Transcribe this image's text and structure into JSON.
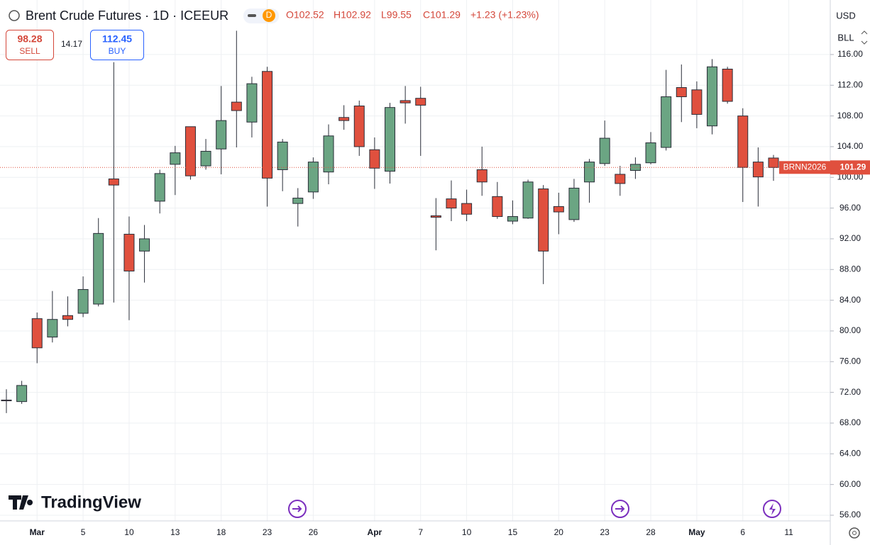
{
  "header": {
    "title": "Brent Crude Futures · 1D · ICEEUR",
    "badge": "D",
    "open": "O102.52",
    "high": "H102.92",
    "low": "L99.55",
    "close": "C101.29",
    "change": "+1.23 (+1.23%)",
    "sell_price": "98.28",
    "sell": "SELL",
    "spread": "14.17",
    "buy_price": "112.45",
    "buy": "BUY",
    "currency": "USD",
    "unit": "BLL",
    "logo": "TradingView",
    "symbol_tag": "BRNN2026"
  },
  "chart_data": {
    "type": "candlestick",
    "categories": [
      null,
      null,
      "Mar",
      null,
      null,
      "5",
      null,
      null,
      "10",
      null,
      null,
      "13",
      null,
      null,
      "18",
      null,
      null,
      "23",
      null,
      null,
      "26",
      null,
      null,
      null,
      "Apr",
      null,
      null,
      "7",
      null,
      null,
      "10",
      null,
      null,
      "15",
      null,
      null,
      "20",
      null,
      null,
      "23",
      null,
      null,
      "28",
      null,
      null,
      "May",
      null,
      null,
      "6",
      null,
      null,
      "11"
    ],
    "open": [
      71.0,
      70.8,
      81.6,
      79.2,
      82.0,
      82.3,
      83.5,
      99.8,
      92.6,
      90.4,
      96.9,
      101.7,
      106.6,
      101.5,
      103.7,
      109.8,
      107.2,
      113.8,
      101.0,
      96.6,
      98.1,
      100.7,
      107.8,
      109.3,
      103.6,
      100.8,
      110.0,
      110.3,
      95.0,
      97.2,
      96.6,
      101.0,
      97.5,
      94.3,
      94.7,
      98.5,
      96.2,
      94.5,
      99.4,
      101.8,
      100.4,
      100.9,
      101.9,
      103.9,
      111.7,
      111.4,
      106.7,
      114.1,
      108.0,
      102.0,
      102.52,
      null
    ],
    "high": [
      72.4,
      73.5,
      82.4,
      85.2,
      84.5,
      87.1,
      94.7,
      115.0,
      94.9,
      93.8,
      101.0,
      104.1,
      106.6,
      105.0,
      111.9,
      119.1,
      113.1,
      114.4,
      105.0,
      98.6,
      102.6,
      106.9,
      109.4,
      110.0,
      105.2,
      109.7,
      111.9,
      111.8,
      97.3,
      99.6,
      98.4,
      104.0,
      99.4,
      97.0,
      99.7,
      99.0,
      98.0,
      99.8,
      102.4,
      107.4,
      101.5,
      102.6,
      105.9,
      114.0,
      114.7,
      112.5,
      115.4,
      114.4,
      109.0,
      103.9,
      102.92,
      null
    ],
    "low": [
      69.3,
      70.5,
      75.8,
      78.5,
      80.6,
      81.8,
      83.2,
      83.7,
      81.4,
      86.3,
      95.3,
      97.7,
      99.7,
      101.0,
      100.4,
      103.9,
      105.2,
      96.2,
      98.2,
      93.6,
      97.2,
      99.1,
      106.2,
      102.8,
      98.5,
      99.2,
      107.0,
      102.8,
      90.5,
      94.3,
      94.3,
      97.6,
      94.6,
      93.9,
      94.6,
      86.1,
      92.6,
      94.2,
      96.7,
      101.5,
      97.6,
      99.8,
      101.7,
      103.5,
      107.2,
      106.4,
      105.6,
      109.6,
      96.8,
      96.2,
      99.55,
      null
    ],
    "close": [
      70.9,
      72.9,
      77.8,
      81.5,
      81.5,
      85.4,
      92.7,
      99.0,
      87.8,
      92.0,
      100.5,
      103.2,
      100.2,
      103.4,
      107.4,
      108.7,
      112.2,
      99.9,
      104.6,
      97.3,
      102.0,
      105.4,
      107.4,
      104.0,
      101.2,
      109.1,
      109.7,
      109.4,
      94.8,
      96.0,
      95.2,
      99.4,
      94.9,
      94.9,
      99.4,
      90.4,
      95.5,
      98.6,
      102.0,
      105.1,
      99.2,
      101.7,
      104.5,
      110.5,
      110.5,
      108.2,
      114.4,
      109.9,
      101.3,
      100.06,
      101.29,
      null
    ],
    "up_color": "#6ba583",
    "down_color": "#e0503e",
    "ylim": [
      55.26,
      123.1
    ],
    "yticks": [
      {
        "value": 56,
        "label": "56.00"
      },
      {
        "value": 60,
        "label": "60.00"
      },
      {
        "value": 64,
        "label": "64.00"
      },
      {
        "value": 68,
        "label": "68.00"
      },
      {
        "value": 72,
        "label": "72.00"
      },
      {
        "value": 76,
        "label": "76.00"
      },
      {
        "value": 80,
        "label": "80.00"
      },
      {
        "value": 84,
        "label": "84.00"
      },
      {
        "value": 88,
        "label": "88.00"
      },
      {
        "value": 92,
        "label": "92.00"
      },
      {
        "value": 96,
        "label": "96.00"
      },
      {
        "value": 100,
        "label": "100.00"
      },
      {
        "value": 104,
        "label": "104.00"
      },
      {
        "value": 108,
        "label": "108.00"
      },
      {
        "value": 112,
        "label": "112.00"
      },
      {
        "value": 116,
        "label": "116.00"
      }
    ],
    "grid": true
  }
}
